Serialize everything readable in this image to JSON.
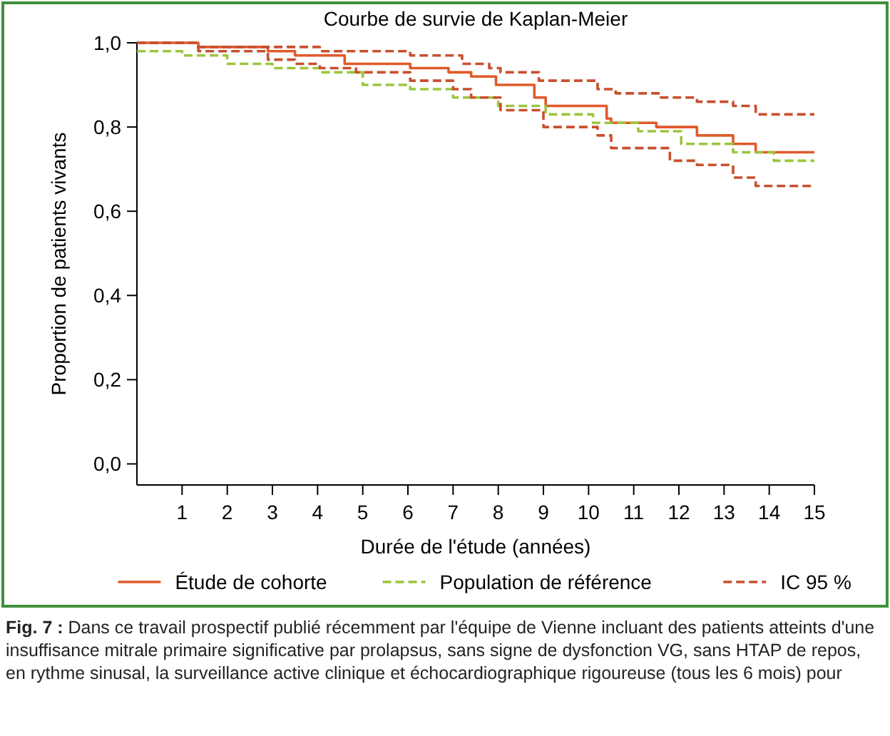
{
  "chart_data": {
    "type": "step",
    "title": "Courbe de survie de Kaplan-Meier",
    "xlabel": "Durée de l'étude (années)",
    "ylabel": "Proportion de patients vivants",
    "xlim": [
      0,
      15
    ],
    "xticks": [
      1,
      2,
      3,
      4,
      5,
      6,
      7,
      8,
      9,
      10,
      11,
      12,
      13,
      14,
      15
    ],
    "ylim": [
      -0.05,
      1.0
    ],
    "yticks": [
      {
        "value": 0,
        "label": "0,0"
      },
      {
        "value": 0.2,
        "label": "0,2"
      },
      {
        "value": 0.4,
        "label": "0,4"
      },
      {
        "value": 0.6,
        "label": "0,6"
      },
      {
        "value": 0.8,
        "label": "0,8"
      },
      {
        "value": 1,
        "label": "1,0"
      }
    ],
    "grid": false,
    "legend": "bottom",
    "series": [
      {
        "name": "Étude de cohorte",
        "color": "#e05a2b",
        "line_style": "solid",
        "x": [
          0,
          1.36,
          2.9,
          3.5,
          4.6,
          6.05,
          6.9,
          7.4,
          7.95,
          8.8,
          9.05,
          10.4,
          10.5,
          11.5,
          12.4,
          13.2,
          13.7,
          15
        ],
        "values": [
          1.0,
          0.99,
          0.98,
          0.97,
          0.95,
          0.94,
          0.93,
          0.92,
          0.9,
          0.87,
          0.85,
          0.82,
          0.81,
          0.8,
          0.78,
          0.76,
          0.74,
          0.74
        ]
      },
      {
        "name": "Population de référence",
        "color": "#9bc53d",
        "line_style": "dashed",
        "x": [
          0,
          1.0,
          2.0,
          3.0,
          4.05,
          5.0,
          6.05,
          7.0,
          8.0,
          9.05,
          10.1,
          11.1,
          12.05,
          13.2,
          14.1,
          15
        ],
        "values": [
          0.98,
          0.97,
          0.95,
          0.94,
          0.93,
          0.9,
          0.89,
          0.87,
          0.85,
          0.83,
          0.81,
          0.79,
          0.76,
          0.74,
          0.72,
          0.72
        ]
      },
      {
        "name": "IC 95 %",
        "color": "#c8502f",
        "line_style": "dashed",
        "x": [
          0,
          1.36,
          4.05,
          4.65,
          6.05,
          7.2,
          7.8,
          8.05,
          8.9,
          10.2,
          10.6,
          11.6,
          12.4,
          13.2,
          13.7,
          15
        ],
        "values": [
          1.0,
          0.99,
          0.98,
          0.98,
          0.97,
          0.95,
          0.94,
          0.93,
          0.91,
          0.89,
          0.88,
          0.87,
          0.86,
          0.85,
          0.83,
          0.83
        ]
      },
      {
        "color": "#c8502f",
        "line_style": "dashed",
        "x": [
          0,
          1.36,
          2.05,
          2.9,
          3.5,
          4.05,
          4.85,
          6.05,
          7.0,
          7.4,
          8.05,
          9.0,
          10.2,
          10.5,
          11.8,
          12.4,
          13.2,
          13.7,
          15
        ],
        "values": [
          1.0,
          0.98,
          0.98,
          0.96,
          0.95,
          0.94,
          0.93,
          0.91,
          0.89,
          0.87,
          0.84,
          0.8,
          0.78,
          0.75,
          0.72,
          0.71,
          0.68,
          0.66,
          0.66
        ]
      }
    ],
    "annotations": [
      "Fig. 7 : Dans ce travail prospectif publié récemment par l'équipe de Vienne incluant des patients atteints d'une insuffisance mitrale primaire significative par prolapsus, sans signe de dysfonction VG, sans HTAP de repos, en rythme sinusal, la surveillance active clinique et échocardiographique rigoureuse (tous les 6 mois) pour"
    ]
  }
}
